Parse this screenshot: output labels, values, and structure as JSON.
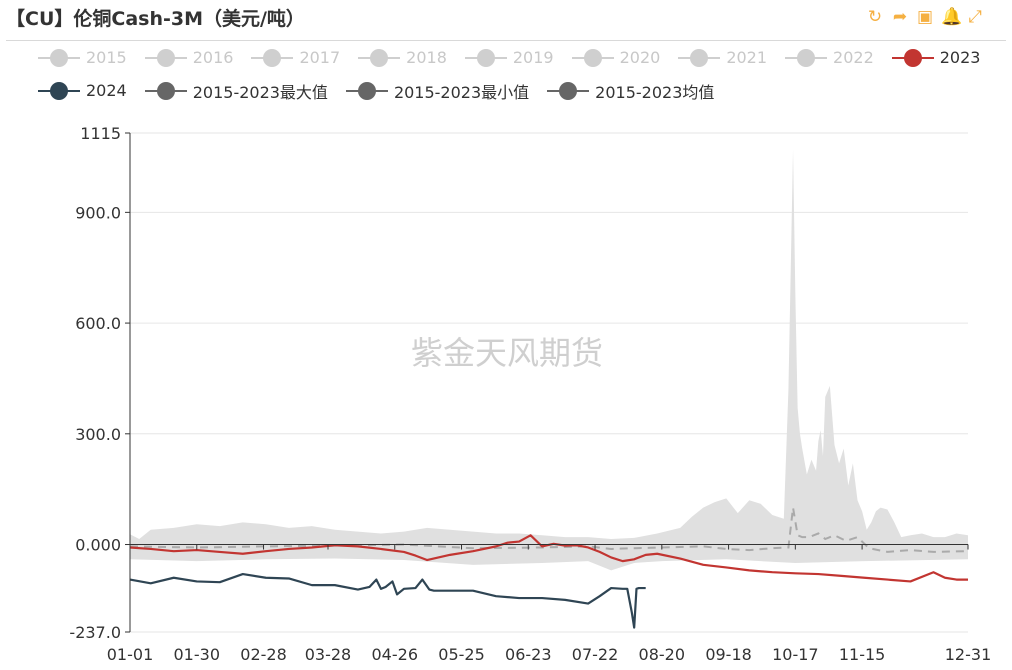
{
  "title": "【CU】伦铜Cash-3M（美元/吨）",
  "toolbox": [
    {
      "name": "refresh-icon",
      "glyph": "↻"
    },
    {
      "name": "share-icon",
      "glyph": "➦"
    },
    {
      "name": "save-image-icon",
      "glyph": "▣"
    },
    {
      "name": "bell-icon",
      "glyph": "🔔"
    },
    {
      "name": "fullscreen-icon",
      "glyph": "⤢"
    }
  ],
  "legend": [
    {
      "label": "2015",
      "color": "#cccccc",
      "active": false
    },
    {
      "label": "2016",
      "color": "#cccccc",
      "active": false
    },
    {
      "label": "2017",
      "color": "#cccccc",
      "active": false
    },
    {
      "label": "2018",
      "color": "#cccccc",
      "active": false
    },
    {
      "label": "2019",
      "color": "#cccccc",
      "active": false
    },
    {
      "label": "2020",
      "color": "#cccccc",
      "active": false
    },
    {
      "label": "2021",
      "color": "#cccccc",
      "active": false
    },
    {
      "label": "2022",
      "color": "#cccccc",
      "active": false
    },
    {
      "label": "2023",
      "color": "#c23531",
      "active": true
    },
    {
      "label": "2024",
      "color": "#2f4554",
      "active": true
    },
    {
      "label": "2015-2023最大值",
      "color": "#666666",
      "active": true
    },
    {
      "label": "2015-2023最小值",
      "color": "#666666",
      "active": true
    },
    {
      "label": "2015-2023均值",
      "color": "#666666",
      "active": true
    }
  ],
  "watermark": "紫金天风期货",
  "chart_data": {
    "type": "line",
    "ylim": [
      -237.0,
      1115
    ],
    "y_ticks": [
      "1115",
      "900.0",
      "600.0",
      "300.0",
      "0.000",
      "-237.0"
    ],
    "y_tick_values": [
      1115,
      900,
      600,
      300,
      0,
      -237
    ],
    "x_ticks": [
      "01-01",
      "01-30",
      "02-28",
      "03-28",
      "04-26",
      "05-25",
      "06-23",
      "07-22",
      "08-20",
      "09-18",
      "10-17",
      "11-15",
      "12-31"
    ],
    "x_tick_days": [
      1,
      30,
      59,
      87,
      116,
      145,
      174,
      203,
      232,
      261,
      290,
      319,
      365
    ],
    "grid": true,
    "legend_position": "top",
    "series": [
      {
        "name": "2015-2023最大值",
        "color": "#e0e0e0",
        "x": [
          1,
          5,
          10,
          20,
          30,
          40,
          50,
          60,
          70,
          80,
          90,
          100,
          110,
          120,
          130,
          140,
          150,
          160,
          170,
          180,
          190,
          200,
          210,
          220,
          230,
          240,
          245,
          250,
          255,
          260,
          265,
          270,
          275,
          280,
          285,
          287,
          289,
          290,
          291,
          292,
          293,
          295,
          297,
          299,
          300,
          301,
          302,
          303,
          305,
          307,
          309,
          311,
          313,
          315,
          317,
          319,
          321,
          323,
          325,
          327,
          330,
          333,
          336,
          340,
          345,
          350,
          355,
          360,
          365
        ],
        "values": [
          28,
          15,
          40,
          45,
          55,
          50,
          60,
          55,
          45,
          50,
          40,
          35,
          30,
          35,
          45,
          40,
          35,
          30,
          30,
          25,
          20,
          20,
          15,
          18,
          30,
          45,
          75,
          100,
          115,
          125,
          85,
          120,
          110,
          80,
          70,
          420,
          1070,
          680,
          370,
          300,
          260,
          190,
          230,
          200,
          280,
          310,
          240,
          400,
          430,
          270,
          220,
          260,
          160,
          220,
          120,
          90,
          40,
          60,
          90,
          100,
          95,
          60,
          20,
          25,
          30,
          20,
          20,
          30,
          25
        ]
      },
      {
        "name": "2015-2023最小值",
        "color": "#e0e0e0",
        "x": [
          1,
          30,
          60,
          90,
          120,
          150,
          180,
          200,
          210,
          220,
          232,
          260,
          290,
          320,
          365
        ],
        "values": [
          -40,
          -45,
          -40,
          -38,
          -42,
          -55,
          -50,
          -45,
          -70,
          -50,
          -45,
          -40,
          -50,
          -45,
          -40
        ]
      },
      {
        "name": "2015-2023均值",
        "color": "#aaaaaa",
        "x": [
          1,
          30,
          60,
          90,
          120,
          150,
          180,
          200,
          210,
          220,
          232,
          250,
          260,
          270,
          280,
          287,
          289,
          291,
          293,
          296,
          300,
          303,
          307,
          312,
          317,
          322,
          330,
          340,
          350,
          365
        ],
        "values": [
          -5,
          -8,
          -5,
          -3,
          0,
          -10,
          -8,
          -5,
          -12,
          -10,
          -8,
          -5,
          -12,
          -15,
          -10,
          -8,
          100,
          25,
          20,
          20,
          30,
          15,
          25,
          10,
          20,
          -10,
          -20,
          -15,
          -20,
          -18
        ]
      },
      {
        "name": "2023",
        "color": "#c23531",
        "x": [
          1,
          10,
          20,
          30,
          40,
          50,
          60,
          70,
          80,
          90,
          100,
          110,
          120,
          125,
          130,
          140,
          150,
          160,
          165,
          170,
          175,
          180,
          185,
          190,
          195,
          200,
          205,
          210,
          215,
          220,
          225,
          230,
          240,
          250,
          260,
          270,
          280,
          290,
          300,
          310,
          320,
          330,
          340,
          350,
          355,
          360,
          365
        ],
        "values": [
          -8,
          -12,
          -18,
          -15,
          -20,
          -25,
          -18,
          -12,
          -8,
          -2,
          -5,
          -12,
          -20,
          -30,
          -42,
          -28,
          -18,
          -5,
          5,
          8,
          25,
          -5,
          2,
          -3,
          -2,
          -8,
          -20,
          -35,
          -45,
          -40,
          -28,
          -25,
          -38,
          -55,
          -62,
          -70,
          -75,
          -78,
          -80,
          -85,
          -90,
          -95,
          -100,
          -75,
          -90,
          -95,
          -95
        ]
      },
      {
        "name": "2024",
        "color": "#2f4554",
        "x": [
          1,
          10,
          20,
          30,
          40,
          50,
          60,
          70,
          80,
          90,
          100,
          105,
          108,
          110,
          112,
          115,
          117,
          120,
          125,
          128,
          131,
          133,
          135,
          140,
          150,
          160,
          170,
          180,
          190,
          200,
          205,
          210,
          215,
          217,
          219,
          220,
          221,
          222,
          225
        ],
        "values": [
          -95,
          -105,
          -90,
          -100,
          -102,
          -80,
          -90,
          -92,
          -110,
          -110,
          -122,
          -115,
          -95,
          -120,
          -115,
          -100,
          -135,
          -120,
          -118,
          -95,
          -122,
          -125,
          -125,
          -125,
          -125,
          -140,
          -145,
          -145,
          -150,
          -160,
          -140,
          -118,
          -120,
          -120,
          -185,
          -225,
          -120,
          -118,
          -118
        ]
      }
    ]
  }
}
